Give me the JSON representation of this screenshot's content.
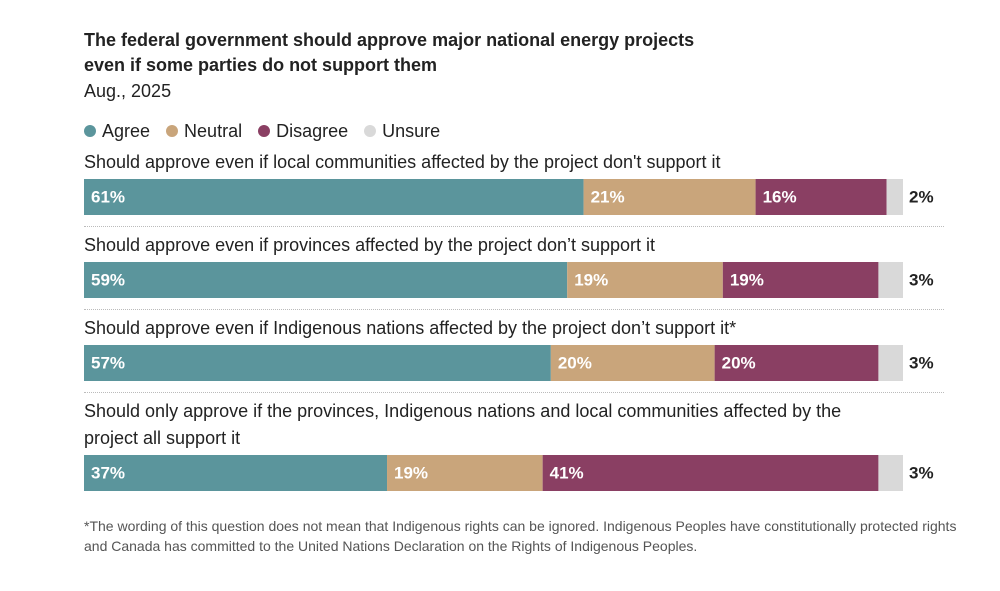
{
  "chart_data": {
    "type": "stacked-bar",
    "title": "The federal government should approve major national energy projects even if some parties do not support them",
    "subtitle": "Aug., 2025",
    "categories": [
      "Should approve even if local communities affected by the project don't support it",
      "Should approve even if provinces affected by the project don’t support it",
      "Should approve even if Indigenous nations affected by the project don’t support it*",
      "Should only approve if the provinces, Indigenous nations and local communities affected by the project all support it"
    ],
    "series": [
      {
        "name": "Agree",
        "color": "#5b959c",
        "values": [
          61,
          59,
          57,
          37
        ],
        "value_labels": [
          "61%",
          "59%",
          "57%",
          "37%"
        ]
      },
      {
        "name": "Neutral",
        "color": "#c9a57b",
        "values": [
          21,
          19,
          20,
          19
        ],
        "value_labels": [
          "21%",
          "19%",
          "20%",
          "19%"
        ]
      },
      {
        "name": "Disagree",
        "color": "#8a3f63",
        "values": [
          16,
          19,
          20,
          41
        ],
        "value_labels": [
          "16%",
          "19%",
          "20%",
          "41%"
        ]
      },
      {
        "name": "Unsure",
        "color": "#d9d9d9",
        "values": [
          2,
          3,
          3,
          3
        ],
        "value_labels": [
          "2%",
          "3%",
          "3%",
          "3%"
        ]
      }
    ],
    "legend": "top-left",
    "note": "*The wording of this question does not mean that Indigenous rights can be ignored. Indigenous Peoples have constitutionally protected rights and Canada has committed to the United Nations Declaration on the Rights of Indigenous Peoples."
  }
}
